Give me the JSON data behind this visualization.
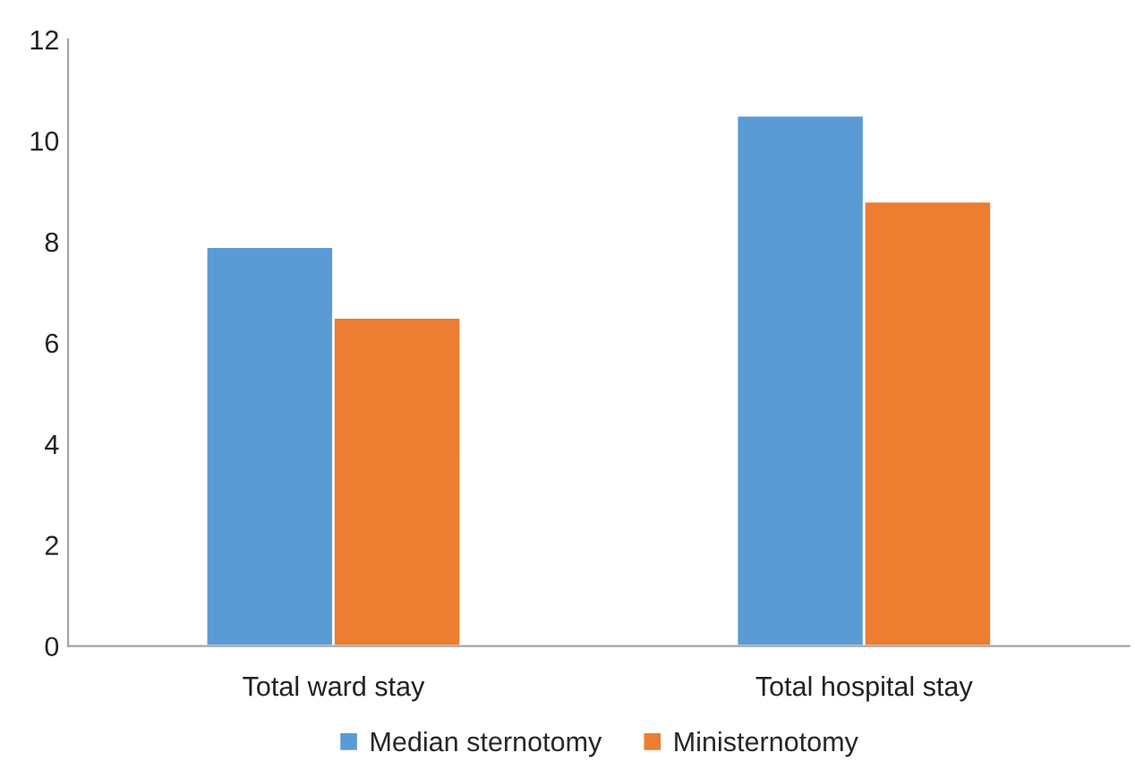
{
  "chart_data": {
    "type": "bar",
    "categories": [
      "Total ward stay",
      "Total hospital stay"
    ],
    "series": [
      {
        "name": "Median sternotomy",
        "color": "#5b9bd5",
        "values": [
          7.9,
          10.5
        ]
      },
      {
        "name": "Ministernotomy",
        "color": "#ed7d31",
        "values": [
          6.5,
          8.8
        ]
      }
    ],
    "ylim": [
      0,
      12
    ],
    "yticks": [
      0,
      2,
      4,
      6,
      8,
      10,
      12
    ],
    "grid": false,
    "legend": "bottom"
  }
}
